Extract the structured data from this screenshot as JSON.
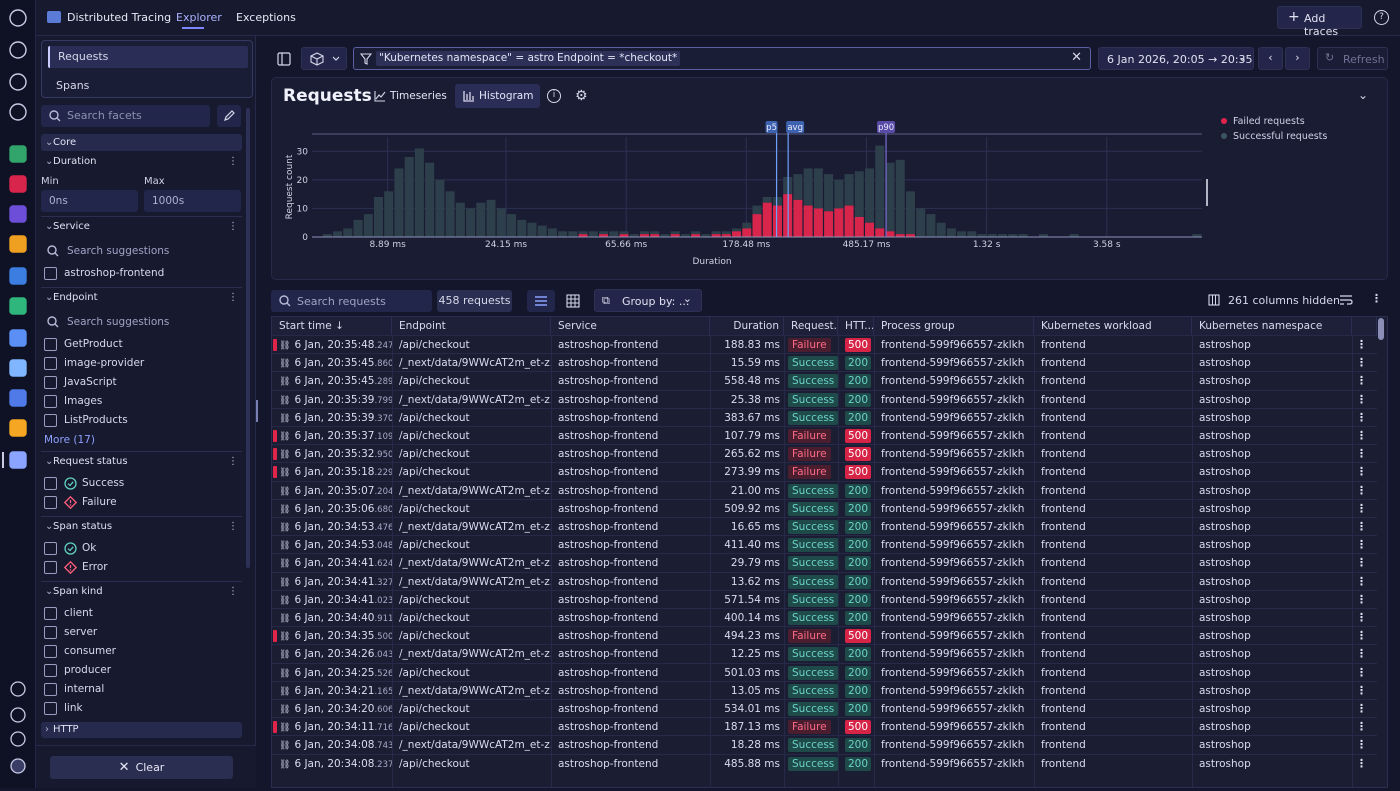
{
  "app": {
    "title": "Distributed Tracing"
  },
  "tabs": [
    {
      "label": "Explorer"
    },
    {
      "label": "Exceptions"
    }
  ],
  "top_actions": {
    "add_traces": "Add traces"
  },
  "sidebar": {
    "modes": [
      "Requests",
      "Spans"
    ],
    "facet_search_placeholder": "Search facets",
    "core_label": "Core",
    "duration": {
      "label": "Duration",
      "min_label": "Min",
      "max_label": "Max",
      "min_placeholder": "0ns",
      "max_placeholder": "1000s"
    },
    "service": {
      "label": "Service",
      "search_placeholder": "Search suggestions",
      "items": [
        "astroshop-frontend"
      ]
    },
    "endpoint": {
      "label": "Endpoint",
      "search_placeholder": "Search suggestions",
      "items": [
        "GetProduct",
        "image-provider",
        "JavaScript",
        "Images",
        "ListProducts"
      ],
      "more": "More (17)"
    },
    "request_status": {
      "label": "Request status",
      "items": [
        "Success",
        "Failure"
      ]
    },
    "span_status": {
      "label": "Span status",
      "items": [
        "Ok",
        "Error"
      ]
    },
    "span_kind": {
      "label": "Span kind",
      "items": [
        "client",
        "server",
        "consumer",
        "producer",
        "internal",
        "link"
      ]
    },
    "http_label": "HTTP",
    "clear_label": "Clear"
  },
  "filter": {
    "chips": [
      "\"Kubernetes namespace\" = astroshop",
      "Endpoint = *checkout*"
    ],
    "timeframe": "6 Jan 2026, 20:05 → 20:35",
    "refresh": "Refresh"
  },
  "chart_header": {
    "title": "Requests",
    "timeseries": "Timeseries",
    "histogram": "Histogram"
  },
  "chart_data": {
    "type": "bar",
    "stacked": true,
    "ylabel": "Request count",
    "xlabel": "Duration",
    "x_ticks": [
      "8.89 ms",
      "24.15 ms",
      "65.66 ms",
      "178.48 ms",
      "485.17 ms",
      "1.32 s",
      "3.58 s"
    ],
    "y_ticks": [
      "0",
      "10",
      "20",
      "30"
    ],
    "ylim": [
      0,
      35
    ],
    "markers": [
      "p5",
      "avg",
      "p90"
    ],
    "legend": [
      "Failed requests",
      "Successful requests"
    ],
    "colors": {
      "failed": "#d8254b",
      "success": "#2d3f4a"
    },
    "series": [
      {
        "name": "Failed requests",
        "values": [
          0,
          0,
          0,
          0,
          0,
          0,
          0,
          0,
          0,
          0,
          0,
          0,
          0,
          0,
          0,
          0,
          0,
          0,
          0,
          0,
          0,
          0,
          0,
          0,
          0,
          0,
          1,
          0,
          1,
          0,
          1,
          0,
          1,
          1,
          0,
          1,
          0,
          1,
          0,
          1,
          1,
          2,
          3,
          8,
          12,
          11,
          15,
          13,
          11,
          10,
          9,
          10,
          11,
          7,
          5,
          3,
          2,
          1,
          1,
          0,
          0,
          0,
          0,
          0,
          0,
          0,
          0,
          0,
          0,
          0,
          0,
          0,
          0,
          0,
          0,
          0,
          0,
          0,
          0,
          0,
          0,
          0,
          0,
          0,
          0,
          0,
          0
        ]
      },
      {
        "name": "Successful requests",
        "values": [
          0,
          1,
          2,
          3,
          6,
          8,
          14,
          16,
          24,
          28,
          31,
          26,
          20,
          16,
          12,
          10,
          12,
          13,
          10,
          8,
          6,
          5,
          4,
          3,
          2,
          2,
          1,
          2,
          1,
          2,
          1,
          1,
          1,
          1,
          1,
          1,
          1,
          1,
          1,
          1,
          1,
          1,
          2,
          3,
          2,
          3,
          6,
          9,
          13,
          14,
          13,
          10,
          11,
          16,
          19,
          29,
          24,
          26,
          15,
          10,
          8,
          5,
          3,
          2,
          2,
          1,
          1,
          1,
          1,
          1,
          0,
          1,
          0,
          0,
          1,
          0,
          0,
          0,
          0,
          0,
          0,
          0,
          0,
          0,
          0,
          0,
          1
        ]
      }
    ]
  },
  "table_toolbar": {
    "search_placeholder": "Search requests",
    "count": "458 requests",
    "group_by": "Group by: ...",
    "hidden_cols": "261 columns hidden"
  },
  "table": {
    "headers": [
      "Start time",
      "Endpoint",
      "Service",
      "Duration",
      "Request...",
      "HTT...",
      "Process group",
      "Kubernetes workload",
      "Kubernetes namespace"
    ],
    "rows": [
      {
        "time": "6 Jan, 20:35:48",
        "ms": ".247",
        "endpoint": "/api/checkout",
        "service": "astroshop-frontend",
        "duration": "188.83 ms",
        "status": "Failure",
        "code": "500",
        "pg": "frontend-599f966557-zklkh",
        "wl": "frontend",
        "ns": "astroshop"
      },
      {
        "time": "6 Jan, 20:35:45",
        "ms": ".860",
        "endpoint": "/_next/data/9WWcAT2m_et-z...",
        "service": "astroshop-frontend",
        "duration": "15.59 ms",
        "status": "Success",
        "code": "200",
        "pg": "frontend-599f966557-zklkh",
        "wl": "frontend",
        "ns": "astroshop"
      },
      {
        "time": "6 Jan, 20:35:45",
        "ms": ".289",
        "endpoint": "/api/checkout",
        "service": "astroshop-frontend",
        "duration": "558.48 ms",
        "status": "Success",
        "code": "200",
        "pg": "frontend-599f966557-zklkh",
        "wl": "frontend",
        "ns": "astroshop"
      },
      {
        "time": "6 Jan, 20:35:39",
        "ms": ".799",
        "endpoint": "/_next/data/9WWcAT2m_et-z...",
        "service": "astroshop-frontend",
        "duration": "25.38 ms",
        "status": "Success",
        "code": "200",
        "pg": "frontend-599f966557-zklkh",
        "wl": "frontend",
        "ns": "astroshop"
      },
      {
        "time": "6 Jan, 20:35:39",
        "ms": ".370",
        "endpoint": "/api/checkout",
        "service": "astroshop-frontend",
        "duration": "383.67 ms",
        "status": "Success",
        "code": "200",
        "pg": "frontend-599f966557-zklkh",
        "wl": "frontend",
        "ns": "astroshop"
      },
      {
        "time": "6 Jan, 20:35:37",
        "ms": ".109",
        "endpoint": "/api/checkout",
        "service": "astroshop-frontend",
        "duration": "107.79 ms",
        "status": "Failure",
        "code": "500",
        "pg": "frontend-599f966557-zklkh",
        "wl": "frontend",
        "ns": "astroshop"
      },
      {
        "time": "6 Jan, 20:35:32",
        "ms": ".950",
        "endpoint": "/api/checkout",
        "service": "astroshop-frontend",
        "duration": "265.62 ms",
        "status": "Failure",
        "code": "500",
        "pg": "frontend-599f966557-zklkh",
        "wl": "frontend",
        "ns": "astroshop"
      },
      {
        "time": "6 Jan, 20:35:18",
        "ms": ".229",
        "endpoint": "/api/checkout",
        "service": "astroshop-frontend",
        "duration": "273.99 ms",
        "status": "Failure",
        "code": "500",
        "pg": "frontend-599f966557-zklkh",
        "wl": "frontend",
        "ns": "astroshop"
      },
      {
        "time": "6 Jan, 20:35:07",
        "ms": ".204",
        "endpoint": "/_next/data/9WWcAT2m_et-z...",
        "service": "astroshop-frontend",
        "duration": "21.00 ms",
        "status": "Success",
        "code": "200",
        "pg": "frontend-599f966557-zklkh",
        "wl": "frontend",
        "ns": "astroshop"
      },
      {
        "time": "6 Jan, 20:35:06",
        "ms": ".680",
        "endpoint": "/api/checkout",
        "service": "astroshop-frontend",
        "duration": "509.92 ms",
        "status": "Success",
        "code": "200",
        "pg": "frontend-599f966557-zklkh",
        "wl": "frontend",
        "ns": "astroshop"
      },
      {
        "time": "6 Jan, 20:34:53",
        "ms": ".476",
        "endpoint": "/_next/data/9WWcAT2m_et-z...",
        "service": "astroshop-frontend",
        "duration": "16.65 ms",
        "status": "Success",
        "code": "200",
        "pg": "frontend-599f966557-zklkh",
        "wl": "frontend",
        "ns": "astroshop"
      },
      {
        "time": "6 Jan, 20:34:53",
        "ms": ".048",
        "endpoint": "/api/checkout",
        "service": "astroshop-frontend",
        "duration": "411.40 ms",
        "status": "Success",
        "code": "200",
        "pg": "frontend-599f966557-zklkh",
        "wl": "frontend",
        "ns": "astroshop"
      },
      {
        "time": "6 Jan, 20:34:41",
        "ms": ".624",
        "endpoint": "/_next/data/9WWcAT2m_et-z...",
        "service": "astroshop-frontend",
        "duration": "29.79 ms",
        "status": "Success",
        "code": "200",
        "pg": "frontend-599f966557-zklkh",
        "wl": "frontend",
        "ns": "astroshop"
      },
      {
        "time": "6 Jan, 20:34:41",
        "ms": ".327",
        "endpoint": "/_next/data/9WWcAT2m_et-z...",
        "service": "astroshop-frontend",
        "duration": "13.62 ms",
        "status": "Success",
        "code": "200",
        "pg": "frontend-599f966557-zklkh",
        "wl": "frontend",
        "ns": "astroshop"
      },
      {
        "time": "6 Jan, 20:34:41",
        "ms": ".023",
        "endpoint": "/api/checkout",
        "service": "astroshop-frontend",
        "duration": "571.54 ms",
        "status": "Success",
        "code": "200",
        "pg": "frontend-599f966557-zklkh",
        "wl": "frontend",
        "ns": "astroshop"
      },
      {
        "time": "6 Jan, 20:34:40",
        "ms": ".911",
        "endpoint": "/api/checkout",
        "service": "astroshop-frontend",
        "duration": "400.14 ms",
        "status": "Success",
        "code": "200",
        "pg": "frontend-599f966557-zklkh",
        "wl": "frontend",
        "ns": "astroshop"
      },
      {
        "time": "6 Jan, 20:34:35",
        "ms": ".500",
        "endpoint": "/api/checkout",
        "service": "astroshop-frontend",
        "duration": "494.23 ms",
        "status": "Failure",
        "code": "500",
        "pg": "frontend-599f966557-zklkh",
        "wl": "frontend",
        "ns": "astroshop"
      },
      {
        "time": "6 Jan, 20:34:26",
        "ms": ".043",
        "endpoint": "/_next/data/9WWcAT2m_et-z...",
        "service": "astroshop-frontend",
        "duration": "12.25 ms",
        "status": "Success",
        "code": "200",
        "pg": "frontend-599f966557-zklkh",
        "wl": "frontend",
        "ns": "astroshop"
      },
      {
        "time": "6 Jan, 20:34:25",
        "ms": ".526",
        "endpoint": "/api/checkout",
        "service": "astroshop-frontend",
        "duration": "501.03 ms",
        "status": "Success",
        "code": "200",
        "pg": "frontend-599f966557-zklkh",
        "wl": "frontend",
        "ns": "astroshop"
      },
      {
        "time": "6 Jan, 20:34:21",
        "ms": ".165",
        "endpoint": "/_next/data/9WWcAT2m_et-z...",
        "service": "astroshop-frontend",
        "duration": "13.05 ms",
        "status": "Success",
        "code": "200",
        "pg": "frontend-599f966557-zklkh",
        "wl": "frontend",
        "ns": "astroshop"
      },
      {
        "time": "6 Jan, 20:34:20",
        "ms": ".606",
        "endpoint": "/api/checkout",
        "service": "astroshop-frontend",
        "duration": "534.01 ms",
        "status": "Success",
        "code": "200",
        "pg": "frontend-599f966557-zklkh",
        "wl": "frontend",
        "ns": "astroshop"
      },
      {
        "time": "6 Jan, 20:34:11",
        "ms": ".716",
        "endpoint": "/api/checkout",
        "service": "astroshop-frontend",
        "duration": "187.13 ms",
        "status": "Failure",
        "code": "500",
        "pg": "frontend-599f966557-zklkh",
        "wl": "frontend",
        "ns": "astroshop"
      },
      {
        "time": "6 Jan, 20:34:08",
        "ms": ".743",
        "endpoint": "/_next/data/9WWcAT2m_et-z...",
        "service": "astroshop-frontend",
        "duration": "18.28 ms",
        "status": "Success",
        "code": "200",
        "pg": "frontend-599f966557-zklkh",
        "wl": "frontend",
        "ns": "astroshop"
      },
      {
        "time": "6 Jan, 20:34:08",
        "ms": ".237",
        "endpoint": "/api/checkout",
        "service": "astroshop-frontend",
        "duration": "485.88 ms",
        "status": "Success",
        "code": "200",
        "pg": "frontend-599f966557-zklkh",
        "wl": "frontend",
        "ns": "astroshop"
      }
    ]
  }
}
